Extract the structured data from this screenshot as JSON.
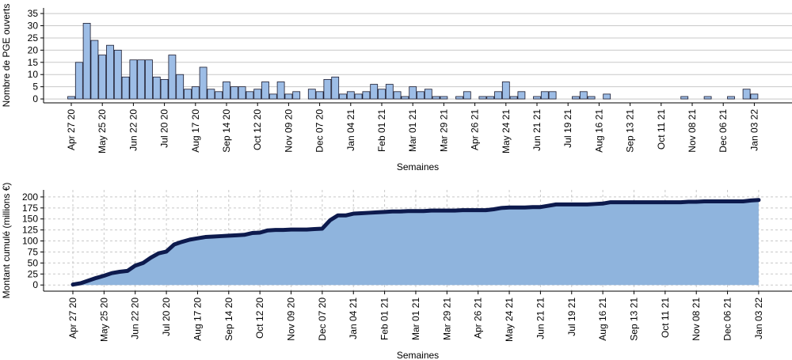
{
  "chart_data": [
    {
      "type": "bar",
      "ylabel": "Nombre de PGE ouverts",
      "xlabel": "Semaines",
      "color": "#9dbde6",
      "grid": true,
      "grid_style": "solid",
      "ylim": [
        -1.6,
        37.3
      ],
      "yticks": [
        0,
        5,
        10,
        15,
        20,
        25,
        30,
        35
      ],
      "categories": [
        "Apr 27 20",
        null,
        null,
        null,
        "May 25 20",
        null,
        null,
        null,
        "Jun 22 20",
        null,
        null,
        null,
        "Jul 20 20",
        null,
        null,
        null,
        "Aug 17 20",
        null,
        null,
        null,
        "Sep 14 20",
        null,
        null,
        null,
        "Oct 12 20",
        null,
        null,
        null,
        "Nov 09 20",
        null,
        null,
        null,
        "Dec 07 20",
        null,
        null,
        null,
        "Jan 04 21",
        null,
        null,
        null,
        "Feb 01 21",
        null,
        null,
        null,
        "Mar 01 21",
        null,
        null,
        null,
        "Mar 29 21",
        null,
        null,
        null,
        "Apr 26 21",
        null,
        null,
        null,
        "May 24 21",
        null,
        null,
        null,
        "Jun 21 21",
        null,
        null,
        null,
        "Jul 19 21",
        null,
        null,
        null,
        "Aug 16 21",
        null,
        null,
        null,
        "Sep 13 21",
        null,
        null,
        null,
        "Oct 11 21",
        null,
        null,
        null,
        "Nov 08 21",
        null,
        null,
        null,
        "Dec 06 21",
        null,
        null,
        null,
        "Jan 03 22"
      ],
      "values": [
        1,
        15,
        31,
        24,
        18,
        22,
        20,
        9,
        16,
        16,
        16,
        9,
        8,
        18,
        10,
        4,
        5,
        13,
        4,
        3,
        7,
        5,
        5,
        3,
        4,
        7,
        2,
        7,
        2,
        3,
        0,
        4,
        3,
        8,
        9,
        2,
        3,
        2,
        3,
        6,
        4,
        6,
        3,
        1,
        5,
        3,
        4,
        1,
        1,
        0,
        1,
        3,
        0,
        1,
        1,
        3,
        7,
        1,
        3,
        0,
        1,
        3,
        3,
        0,
        0,
        1,
        3,
        1,
        0,
        2,
        0,
        0,
        0,
        0,
        0,
        0,
        0,
        0,
        0,
        1,
        0,
        0,
        1,
        0,
        0,
        1,
        0,
        4,
        2
      ]
    },
    {
      "type": "area",
      "ylabel": "Montant cumulé (millions €)",
      "xlabel": "Semaines",
      "color": "#0d1a4d",
      "area_color": "#8fb4dd",
      "grid": true,
      "grid_style": "dashed",
      "ylim": [
        -14,
        216
      ],
      "yticks": [
        0,
        25,
        50,
        75,
        100,
        125,
        150,
        175,
        200
      ],
      "categories": [
        "Apr 27 20",
        null,
        null,
        null,
        "May 25 20",
        null,
        null,
        null,
        "Jun 22 20",
        null,
        null,
        null,
        "Jul 20 20",
        null,
        null,
        null,
        "Aug 17 20",
        null,
        null,
        null,
        "Sep 14 20",
        null,
        null,
        null,
        "Oct 12 20",
        null,
        null,
        null,
        "Nov 09 20",
        null,
        null,
        null,
        "Dec 07 20",
        null,
        null,
        null,
        "Jan 04 21",
        null,
        null,
        null,
        "Feb 01 21",
        null,
        null,
        null,
        "Mar 01 21",
        null,
        null,
        null,
        "Mar 29 21",
        null,
        null,
        null,
        "Apr 26 21",
        null,
        null,
        null,
        "May 24 21",
        null,
        null,
        null,
        "Jun 21 21",
        null,
        null,
        null,
        "Jul 19 21",
        null,
        null,
        null,
        "Aug 16 21",
        null,
        null,
        null,
        "Sep 13 21",
        null,
        null,
        null,
        "Oct 11 21",
        null,
        null,
        null,
        "Nov 08 21",
        null,
        null,
        null,
        "Dec 06 21",
        null,
        null,
        null,
        "Jan 03 22"
      ],
      "values": [
        1,
        4,
        10,
        16,
        21,
        27,
        30,
        32,
        44,
        50,
        62,
        72,
        76,
        92,
        98,
        103,
        106,
        109,
        110,
        111,
        112,
        113,
        114,
        118,
        119,
        124,
        125,
        125,
        126,
        126,
        126,
        127,
        128,
        147,
        158,
        158,
        162,
        163,
        164,
        165,
        166,
        167,
        167,
        168,
        168,
        168,
        169,
        169,
        169,
        169,
        170,
        170,
        170,
        170,
        172,
        175,
        176,
        176,
        176,
        177,
        177,
        180,
        183,
        183,
        183,
        183,
        183,
        184,
        185,
        188,
        188,
        188,
        188,
        188,
        188,
        188,
        188,
        188,
        188,
        189,
        189,
        190,
        190,
        190,
        190,
        190,
        190,
        192,
        193
      ]
    }
  ]
}
